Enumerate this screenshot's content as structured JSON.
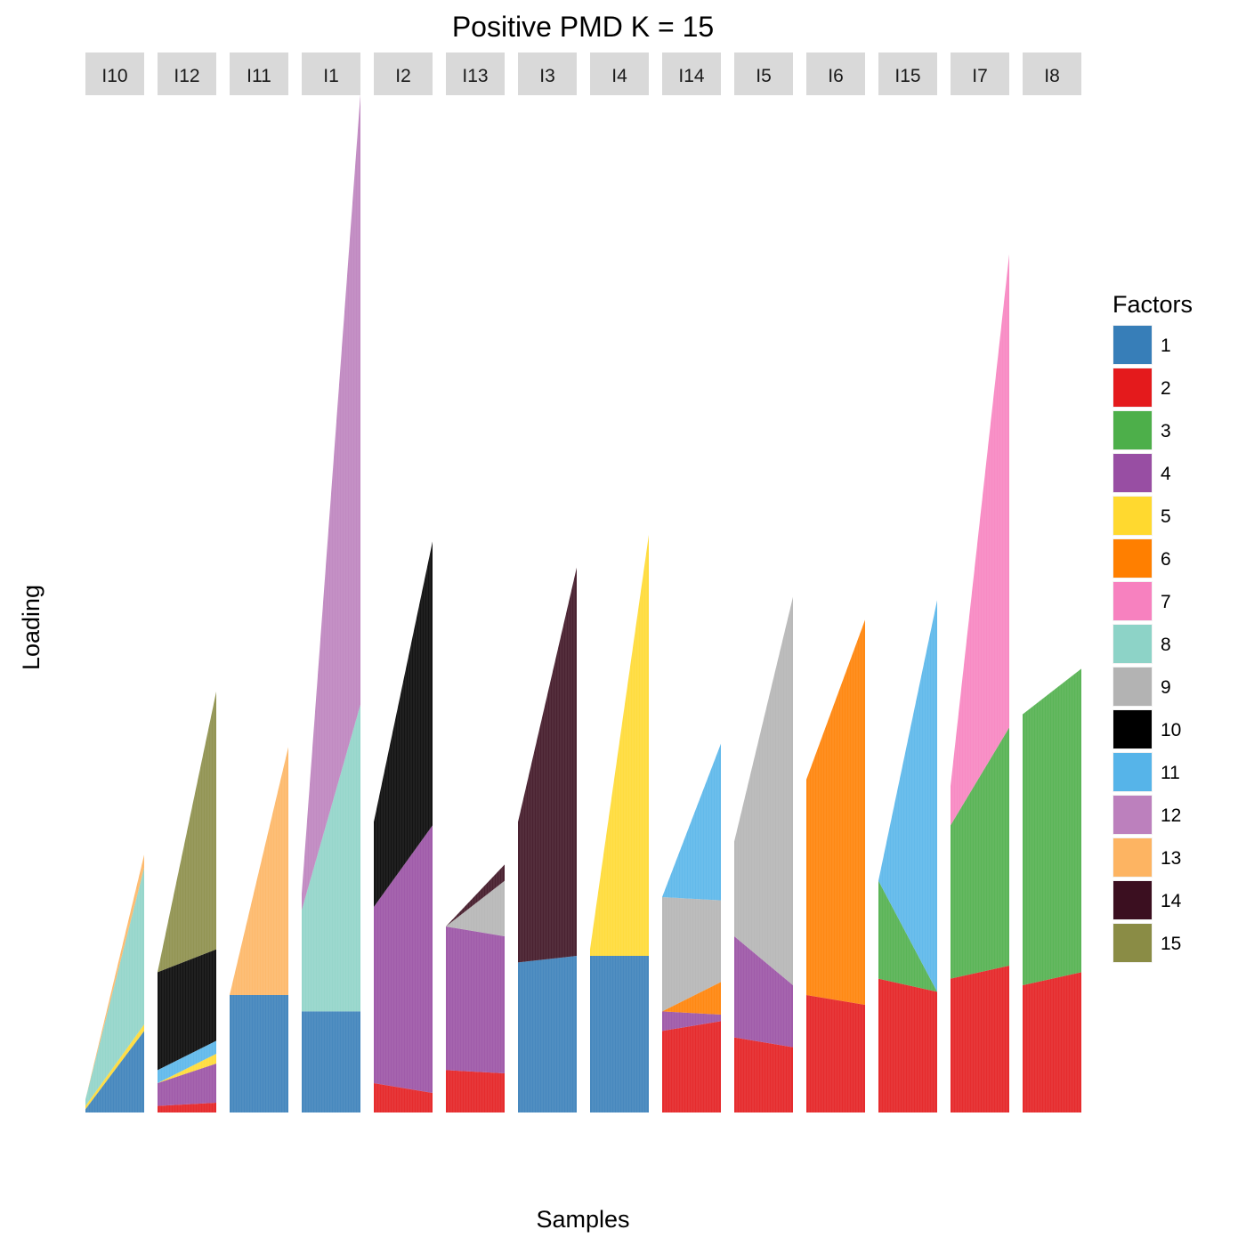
{
  "chart_data": {
    "type": "bar",
    "subtype": "stacked bar, faceted",
    "title": "Positive PMD K = 15",
    "xlabel": "Samples",
    "ylabel": "Loading",
    "grid": false,
    "legend": {
      "title": "Factors",
      "position": "right"
    },
    "factors": [
      {
        "name": "1",
        "color": "#377EB8"
      },
      {
        "name": "2",
        "color": "#E41A1C"
      },
      {
        "name": "3",
        "color": "#4DAF4A"
      },
      {
        "name": "4",
        "color": "#984EA3"
      },
      {
        "name": "5",
        "color": "#FFD92F"
      },
      {
        "name": "6",
        "color": "#FF7F00"
      },
      {
        "name": "7",
        "color": "#F781BF"
      },
      {
        "name": "8",
        "color": "#8DD3C7"
      },
      {
        "name": "9",
        "color": "#B3B3B3"
      },
      {
        "name": "10",
        "color": "#000000"
      },
      {
        "name": "11",
        "color": "#56B4E9"
      },
      {
        "name": "12",
        "color": "#BC80BD"
      },
      {
        "name": "13",
        "color": "#FDB462"
      },
      {
        "name": "14",
        "color": "#3B0F20"
      },
      {
        "name": "15",
        "color": "#8A8C45"
      }
    ],
    "panels": [
      {
        "label": "I10",
        "layers": [
          {
            "factor": "1",
            "start": 0.01,
            "end": 0.25
          },
          {
            "factor": "5",
            "start": 0.01,
            "end": 0.02
          },
          {
            "factor": "8",
            "start": 0.02,
            "end": 0.48
          },
          {
            "factor": "13",
            "start": 0.0,
            "end": 0.04
          }
        ]
      },
      {
        "label": "I12",
        "layers": [
          {
            "factor": "2",
            "start": 0.02,
            "end": 0.03
          },
          {
            "factor": "4",
            "start": 0.07,
            "end": 0.12
          },
          {
            "factor": "5",
            "start": 0.0,
            "end": 0.03
          },
          {
            "factor": "11",
            "start": 0.04,
            "end": 0.04
          },
          {
            "factor": "10",
            "start": 0.3,
            "end": 0.28
          },
          {
            "factor": "15",
            "start": 0.0,
            "end": 0.79
          }
        ]
      },
      {
        "label": "I11",
        "layers": [
          {
            "factor": "1",
            "start": 0.36,
            "end": 0.36
          },
          {
            "factor": "13",
            "start": 0.0,
            "end": 0.76
          }
        ]
      },
      {
        "label": "I1",
        "layers": [
          {
            "factor": "1",
            "start": 0.31,
            "end": 0.31
          },
          {
            "factor": "8",
            "start": 0.31,
            "end": 0.94
          },
          {
            "factor": "12",
            "start": 0.05,
            "end": 1.87
          }
        ]
      },
      {
        "label": "I2",
        "layers": [
          {
            "factor": "2",
            "start": 0.09,
            "end": 0.06
          },
          {
            "factor": "4",
            "start": 0.54,
            "end": 0.82
          },
          {
            "factor": "10",
            "start": 0.26,
            "end": 0.87
          }
        ]
      },
      {
        "label": "I13",
        "layers": [
          {
            "factor": "2",
            "start": 0.13,
            "end": 0.12
          },
          {
            "factor": "4",
            "start": 0.44,
            "end": 0.42
          },
          {
            "factor": "9",
            "start": 0.0,
            "end": 0.17
          },
          {
            "factor": "14",
            "start": 0.0,
            "end": 0.05
          }
        ]
      },
      {
        "label": "I3",
        "layers": [
          {
            "factor": "1",
            "start": 0.46,
            "end": 0.48
          },
          {
            "factor": "14",
            "start": 0.43,
            "end": 1.19
          }
        ]
      },
      {
        "label": "I4",
        "layers": [
          {
            "factor": "1",
            "start": 0.48,
            "end": 0.48
          },
          {
            "factor": "5",
            "start": 0.02,
            "end": 1.29
          }
        ]
      },
      {
        "label": "I14",
        "layers": [
          {
            "factor": "2",
            "start": 0.25,
            "end": 0.28
          },
          {
            "factor": "4",
            "start": 0.06,
            "end": 0.02
          },
          {
            "factor": "6",
            "start": 0.0,
            "end": 0.1
          },
          {
            "factor": "9",
            "start": 0.35,
            "end": 0.25
          },
          {
            "factor": "11",
            "start": 0.0,
            "end": 0.48
          }
        ]
      },
      {
        "label": "I5",
        "layers": [
          {
            "factor": "2",
            "start": 0.23,
            "end": 0.2
          },
          {
            "factor": "4",
            "start": 0.31,
            "end": 0.19
          },
          {
            "factor": "9",
            "start": 0.29,
            "end": 1.19
          }
        ]
      },
      {
        "label": "I6",
        "layers": [
          {
            "factor": "2",
            "start": 0.36,
            "end": 0.33
          },
          {
            "factor": "6",
            "start": 0.66,
            "end": 1.18
          }
        ]
      },
      {
        "label": "I15",
        "layers": [
          {
            "factor": "2",
            "start": 0.41,
            "end": 0.37
          },
          {
            "factor": "3",
            "start": 0.3,
            "end": 0.0
          },
          {
            "factor": "11",
            "start": 0.0,
            "end": 1.2
          }
        ]
      },
      {
        "label": "I7",
        "layers": [
          {
            "factor": "2",
            "start": 0.41,
            "end": 0.45
          },
          {
            "factor": "3",
            "start": 0.47,
            "end": 0.73
          },
          {
            "factor": "7",
            "start": 0.12,
            "end": 1.45
          }
        ]
      },
      {
        "label": "I8",
        "layers": [
          {
            "factor": "2",
            "start": 0.39,
            "end": 0.43
          },
          {
            "factor": "3",
            "start": 0.83,
            "end": 0.93
          },
          {
            "factor": "11",
            "start": 0.0,
            "end": 0.0
          }
        ]
      }
    ],
    "ylim": [
      0,
      3
    ]
  }
}
